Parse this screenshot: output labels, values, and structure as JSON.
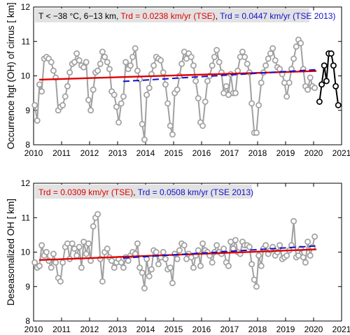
{
  "chart_data": [
    {
      "type": "line",
      "ylabel": "Occurrence hgt (OH) of cirrus [ km]",
      "xlim": [
        2010,
        2021
      ],
      "ylim": [
        8,
        12
      ],
      "xticks": [
        2010,
        2011,
        2012,
        2013,
        2014,
        2015,
        2016,
        2017,
        2018,
        2019,
        2020,
        2021
      ],
      "yticks": [
        8,
        9,
        10,
        11,
        12
      ],
      "grid": false,
      "annotation": {
        "cond": "T < −38 °C, 6−13 km, ",
        "trd1": "Trd = 0.0238 km/yr (TSE)",
        "sep": ", ",
        "trd2": "Trd = 0.0447 km/yr (TSE 2013)",
        "color1": "#e00000",
        "color2": "#1010d0"
      },
      "series": [
        {
          "kind": "monthly",
          "color": "#a0a0a0",
          "x": [
            2010.04,
            2010.13,
            2010.21,
            2010.29,
            2010.38,
            2010.46,
            2010.54,
            2010.63,
            2010.71,
            2010.79,
            2010.88,
            2010.96,
            2011.04,
            2011.13,
            2011.21,
            2011.29,
            2011.38,
            2011.46,
            2011.54,
            2011.63,
            2011.71,
            2011.79,
            2011.88,
            2011.96,
            2012.04,
            2012.13,
            2012.21,
            2012.29,
            2012.38,
            2012.46,
            2012.54,
            2012.63,
            2012.71,
            2012.79,
            2012.88,
            2012.96,
            2013.04,
            2013.13,
            2013.21,
            2013.29,
            2013.38,
            2013.46,
            2013.54,
            2013.63,
            2013.71,
            2013.79,
            2013.88,
            2013.96,
            2014.04,
            2014.13,
            2014.21,
            2014.29,
            2014.38,
            2014.46,
            2014.54,
            2014.63,
            2014.71,
            2014.79,
            2014.88,
            2014.96,
            2015.04,
            2015.13,
            2015.21,
            2015.29,
            2015.38,
            2015.46,
            2015.54,
            2015.63,
            2015.71,
            2015.79,
            2015.88,
            2015.96,
            2016.04,
            2016.13,
            2016.21,
            2016.29,
            2016.38,
            2016.46,
            2016.54,
            2016.63,
            2016.71,
            2016.79,
            2016.88,
            2016.96,
            2017.04,
            2017.13,
            2017.21,
            2017.29,
            2017.38,
            2017.46,
            2017.54,
            2017.63,
            2017.71,
            2017.79,
            2017.88,
            2017.96,
            2018.04,
            2018.13,
            2018.21,
            2018.29,
            2018.38,
            2018.46,
            2018.54,
            2018.63,
            2018.71,
            2018.79,
            2018.88,
            2018.96,
            2019.04,
            2019.13,
            2019.21,
            2019.29,
            2019.38,
            2019.46,
            2019.54,
            2019.63,
            2019.71,
            2019.79,
            2019.88,
            2019.96,
            2020.04
          ],
          "y": [
            9.15,
            8.7,
            9.75,
            9.55,
            10.5,
            10.55,
            10.5,
            10.4,
            10.15,
            9.95,
            9.0,
            9.1,
            9.15,
            9.4,
            9.7,
            10.1,
            10.35,
            10.4,
            10.65,
            10.45,
            10.3,
            10.25,
            10.4,
            9.3,
            9.0,
            9.6,
            10.1,
            10.15,
            10.35,
            10.7,
            10.55,
            10.4,
            10.2,
            9.55,
            9.45,
            9.1,
            8.65,
            9.2,
            9.4,
            10.4,
            10.2,
            10.3,
            10.55,
            10.8,
            10.15,
            9.9,
            8.6,
            8.15,
            9.45,
            9.65,
            10.05,
            10.3,
            10.55,
            10.5,
            10.45,
            10.1,
            9.75,
            9.2,
            8.55,
            8.3,
            9.5,
            9.6,
            10.0,
            10.35,
            10.7,
            10.5,
            10.65,
            10.55,
            10.3,
            9.85,
            9.35,
            8.65,
            8.55,
            9.25,
            9.85,
            10.0,
            10.3,
            10.55,
            10.75,
            10.4,
            10.1,
            9.5,
            9.7,
            9.45,
            10.05,
            9.5,
            9.5,
            10.15,
            10.55,
            10.7,
            10.55,
            10.35,
            10.1,
            9.2,
            8.35,
            8.35,
            9.15,
            9.8,
            10.1,
            10.3,
            10.5,
            10.65,
            10.8,
            10.45,
            10.25,
            10.2,
            10.05,
            9.8,
            9.4,
            9.8,
            10.2,
            10.5,
            10.85,
            11.05,
            10.95,
            10.2,
            9.7,
            9.6,
            9.95,
            9.7,
            9.65
          ]
        },
        {
          "kind": "monthly-2020",
          "color": "#000000",
          "x": [
            2020.21,
            2020.29,
            2020.38,
            2020.46,
            2020.54,
            2020.63,
            2020.71,
            2020.79,
            2020.88
          ],
          "y": [
            9.25,
            9.75,
            10.3,
            9.85,
            10.65,
            10.65,
            10.3,
            9.7,
            9.15
          ]
        },
        {
          "name": "Trd = 0.0238 km/yr (TSE)",
          "kind": "trend",
          "style": "solid",
          "color": "#e00000",
          "x": [
            2010.2,
            2020.1
          ],
          "y": [
            9.89,
            10.14
          ]
        },
        {
          "name": "Trd = 0.0447 km/yr (TSE 2013)",
          "kind": "trend",
          "style": "dashed",
          "color": "#1010d0",
          "x": [
            2013.2,
            2020.1
          ],
          "y": [
            9.84,
            10.18
          ]
        }
      ]
    },
    {
      "type": "line",
      "ylabel": "Deseasonalized OH [ km]",
      "xlim": [
        2010,
        2021
      ],
      "ylim": [
        8,
        12
      ],
      "xticks": [
        2010,
        2011,
        2012,
        2013,
        2014,
        2015,
        2016,
        2017,
        2018,
        2019,
        2020,
        2021
      ],
      "yticks": [
        8,
        9,
        10,
        11,
        12
      ],
      "grid": false,
      "annotation": {
        "cond": "",
        "trd1": "Trd = 0.0309 km/yr (TSE)",
        "sep": ", ",
        "trd2": "Trd = 0.0508 km/yr (TSE 2013)",
        "color1": "#e00000",
        "color2": "#1010d0"
      },
      "series": [
        {
          "kind": "monthly",
          "color": "#a0a0a0",
          "x": [
            2010.04,
            2010.13,
            2010.21,
            2010.29,
            2010.38,
            2010.46,
            2010.54,
            2010.63,
            2010.71,
            2010.79,
            2010.88,
            2010.96,
            2011.04,
            2011.13,
            2011.21,
            2011.29,
            2011.38,
            2011.46,
            2011.54,
            2011.63,
            2011.71,
            2011.79,
            2011.88,
            2011.96,
            2012.04,
            2012.13,
            2012.21,
            2012.29,
            2012.38,
            2012.46,
            2012.54,
            2012.63,
            2012.71,
            2012.79,
            2012.88,
            2012.96,
            2013.04,
            2013.13,
            2013.21,
            2013.29,
            2013.38,
            2013.46,
            2013.54,
            2013.63,
            2013.71,
            2013.79,
            2013.88,
            2013.96,
            2014.04,
            2014.13,
            2014.21,
            2014.29,
            2014.38,
            2014.46,
            2014.54,
            2014.63,
            2014.71,
            2014.79,
            2014.88,
            2014.96,
            2015.04,
            2015.13,
            2015.21,
            2015.29,
            2015.38,
            2015.46,
            2015.54,
            2015.63,
            2015.71,
            2015.79,
            2015.88,
            2015.96,
            2016.04,
            2016.13,
            2016.21,
            2016.29,
            2016.38,
            2016.46,
            2016.54,
            2016.63,
            2016.71,
            2016.79,
            2016.88,
            2016.96,
            2017.04,
            2017.13,
            2017.21,
            2017.29,
            2017.38,
            2017.46,
            2017.54,
            2017.63,
            2017.71,
            2017.79,
            2017.88,
            2017.96,
            2018.04,
            2018.13,
            2018.21,
            2018.29,
            2018.38,
            2018.46,
            2018.54,
            2018.63,
            2018.71,
            2018.79,
            2018.88,
            2018.96,
            2019.04,
            2019.13,
            2019.21,
            2019.29,
            2019.38,
            2019.46,
            2019.54,
            2019.63,
            2019.71,
            2019.79,
            2019.88,
            2019.96,
            2020.04
          ],
          "y": [
            9.7,
            9.55,
            9.6,
            10.2,
            9.9,
            10.0,
            9.75,
            9.55,
            9.95,
            9.7,
            9.25,
            9.15,
            9.7,
            10.15,
            10.25,
            9.8,
            10.25,
            10.1,
            9.9,
            10.15,
            9.55,
            10.3,
            9.95,
            10.25,
            9.75,
            10.75,
            11.0,
            11.1,
            9.8,
            9.15,
            10.0,
            10.1,
            9.85,
            9.75,
            9.55,
            9.7,
            9.8,
            9.7,
            9.55,
            9.85,
            9.75,
            9.9,
            10.0,
            9.95,
            10.25,
            9.55,
            9.4,
            8.95,
            9.8,
            9.3,
            9.5,
            10.05,
            10.0,
            9.65,
            9.85,
            10.0,
            9.8,
            9.5,
            9.55,
            9.1,
            9.95,
            9.8,
            10.05,
            10.25,
            10.2,
            9.8,
            9.95,
            9.85,
            9.55,
            9.9,
            10.05,
            9.6,
            10.25,
            10.05,
            10.0,
            9.9,
            9.7,
            10.0,
            10.2,
            10.0,
            9.95,
            10.1,
            9.7,
            9.6,
            10.3,
            10.1,
            10.35,
            10.0,
            9.95,
            10.3,
            10.2,
            10.2,
            10.15,
            9.65,
            9.2,
            9.0,
            9.9,
            9.6,
            10.1,
            10.2,
            9.95,
            10.05,
            10.15,
            9.9,
            10.0,
            10.2,
            9.8,
            9.85,
            9.9,
            10.05,
            10.2,
            10.9,
            9.85,
            9.9,
            10.1,
            9.85,
            9.7,
            10.3,
            9.9,
            10.15,
            10.45
          ]
        },
        {
          "name": "Trd = 0.0309 km/yr (TSE)",
          "kind": "trend",
          "style": "solid",
          "color": "#e00000",
          "x": [
            2010.2,
            2020.1
          ],
          "y": [
            9.77,
            10.08
          ]
        },
        {
          "name": "Trd = 0.0508 km/yr (TSE 2013)",
          "kind": "trend",
          "style": "dashed",
          "color": "#1010d0",
          "x": [
            2013.2,
            2020.1
          ],
          "y": [
            9.83,
            10.18
          ]
        }
      ]
    }
  ]
}
